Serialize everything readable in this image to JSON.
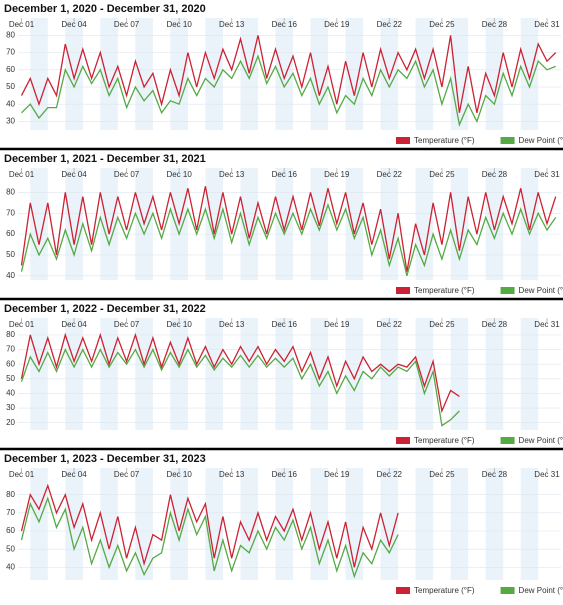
{
  "chart_data": [
    {
      "type": "line",
      "title": "December 1, 2020 - December 31, 2020",
      "x": [
        1,
        1.5,
        2,
        2.5,
        3,
        3.5,
        4,
        4.5,
        5,
        5.5,
        6,
        6.5,
        7,
        7.5,
        8,
        8.5,
        9,
        9.5,
        10,
        10.5,
        11,
        11.5,
        12,
        12.5,
        13,
        13.5,
        14,
        14.5,
        15,
        15.5,
        16,
        16.5,
        17,
        17.5,
        18,
        18.5,
        19,
        19.5,
        20,
        20.5,
        21,
        21.5,
        22,
        22.5,
        23,
        23.5,
        24,
        24.5,
        25,
        25.5,
        26,
        26.5,
        27,
        27.5,
        28,
        28.5,
        29,
        29.5,
        30,
        30.5,
        31,
        31.5
      ],
      "xlim": [
        0.8,
        31.8
      ],
      "xticks": [
        {
          "value": 1,
          "label": "Dec 01"
        },
        {
          "value": 4,
          "label": "Dec 04"
        },
        {
          "value": 7,
          "label": "Dec 07"
        },
        {
          "value": 10,
          "label": "Dec 10"
        },
        {
          "value": 13,
          "label": "Dec 13"
        },
        {
          "value": 16,
          "label": "Dec 16"
        },
        {
          "value": 19,
          "label": "Dec 19"
        },
        {
          "value": 22,
          "label": "Dec 22"
        },
        {
          "value": 25,
          "label": "Dec 25"
        },
        {
          "value": 28,
          "label": "Dec 28"
        },
        {
          "value": 31,
          "label": "Dec 31"
        }
      ],
      "ylim": [
        25,
        82
      ],
      "yticks": [
        30,
        40,
        50,
        60,
        70,
        80
      ],
      "legend": "bottom-right",
      "series": [
        {
          "name": "Temperature (°F)",
          "color": "#cc2233",
          "values": [
            45,
            55,
            40,
            55,
            45,
            75,
            55,
            72,
            55,
            70,
            50,
            62,
            45,
            65,
            50,
            58,
            40,
            60,
            45,
            70,
            50,
            70,
            55,
            72,
            60,
            78,
            58,
            80,
            55,
            72,
            55,
            68,
            50,
            70,
            45,
            62,
            40,
            65,
            45,
            70,
            50,
            72,
            55,
            70,
            60,
            72,
            55,
            72,
            50,
            80,
            35,
            62,
            35,
            58,
            45,
            70,
            50,
            72,
            55,
            75,
            65,
            70
          ]
        },
        {
          "name": "Dew Point (°)",
          "color": "#55aa44",
          "values": [
            35,
            40,
            32,
            38,
            38,
            60,
            50,
            62,
            52,
            60,
            45,
            55,
            38,
            50,
            42,
            48,
            35,
            42,
            40,
            55,
            45,
            55,
            50,
            60,
            55,
            65,
            55,
            68,
            52,
            62,
            50,
            58,
            45,
            55,
            40,
            50,
            35,
            45,
            40,
            55,
            45,
            60,
            50,
            60,
            55,
            65,
            50,
            60,
            40,
            55,
            28,
            40,
            30,
            45,
            40,
            58,
            45,
            62,
            50,
            65,
            60,
            62
          ]
        }
      ]
    },
    {
      "type": "line",
      "title": "December 1, 2021 - December 31, 2021",
      "x": [
        1,
        1.5,
        2,
        2.5,
        3,
        3.5,
        4,
        4.5,
        5,
        5.5,
        6,
        6.5,
        7,
        7.5,
        8,
        8.5,
        9,
        9.5,
        10,
        10.5,
        11,
        11.5,
        12,
        12.5,
        13,
        13.5,
        14,
        14.5,
        15,
        15.5,
        16,
        16.5,
        17,
        17.5,
        18,
        18.5,
        19,
        19.5,
        20,
        20.5,
        21,
        21.5,
        22,
        22.5,
        23,
        23.5,
        24,
        24.5,
        25,
        25.5,
        26,
        26.5,
        27,
        27.5,
        28,
        28.5,
        29,
        29.5,
        30,
        30.5,
        31,
        31.5
      ],
      "xlim": [
        0.8,
        31.8
      ],
      "xticks": [
        {
          "value": 1,
          "label": "Dec 01"
        },
        {
          "value": 4,
          "label": "Dec 04"
        },
        {
          "value": 7,
          "label": "Dec 07"
        },
        {
          "value": 10,
          "label": "Dec 10"
        },
        {
          "value": 13,
          "label": "Dec 13"
        },
        {
          "value": 16,
          "label": "Dec 16"
        },
        {
          "value": 19,
          "label": "Dec 19"
        },
        {
          "value": 22,
          "label": "Dec 22"
        },
        {
          "value": 25,
          "label": "Dec 25"
        },
        {
          "value": 28,
          "label": "Dec 28"
        },
        {
          "value": 31,
          "label": "Dec 31"
        }
      ],
      "ylim": [
        38,
        85
      ],
      "yticks": [
        40,
        50,
        60,
        70,
        80
      ],
      "legend": "bottom-right",
      "series": [
        {
          "name": "Temperature (°F)",
          "color": "#cc2233",
          "values": [
            45,
            75,
            55,
            75,
            50,
            80,
            55,
            78,
            55,
            80,
            60,
            78,
            62,
            80,
            65,
            78,
            62,
            80,
            65,
            82,
            62,
            83,
            60,
            80,
            60,
            78,
            58,
            75,
            60,
            78,
            62,
            78,
            62,
            80,
            64,
            82,
            65,
            80,
            60,
            75,
            55,
            72,
            48,
            70,
            42,
            65,
            50,
            75,
            55,
            80,
            52,
            78,
            60,
            80,
            62,
            78,
            65,
            82,
            62,
            80,
            65,
            78
          ]
        },
        {
          "name": "Dew Point (°)",
          "color": "#55aa44",
          "values": [
            42,
            60,
            50,
            58,
            48,
            62,
            50,
            65,
            52,
            68,
            55,
            68,
            58,
            70,
            60,
            70,
            58,
            72,
            60,
            72,
            60,
            72,
            58,
            72,
            56,
            70,
            55,
            68,
            58,
            70,
            60,
            70,
            60,
            72,
            62,
            74,
            62,
            72,
            58,
            68,
            50,
            62,
            45,
            58,
            40,
            55,
            45,
            60,
            48,
            62,
            48,
            62,
            55,
            68,
            58,
            70,
            60,
            72,
            60,
            70,
            62,
            68
          ]
        }
      ]
    },
    {
      "type": "line",
      "title": "December 1, 2022 - December 31, 2022",
      "x": [
        1,
        1.5,
        2,
        2.5,
        3,
        3.5,
        4,
        4.5,
        5,
        5.5,
        6,
        6.5,
        7,
        7.5,
        8,
        8.5,
        9,
        9.5,
        10,
        10.5,
        11,
        11.5,
        12,
        12.5,
        13,
        13.5,
        14,
        14.5,
        15,
        15.5,
        16,
        16.5,
        17,
        17.5,
        18,
        18.5,
        19,
        19.5,
        20,
        20.5,
        21,
        21.5,
        22,
        22.5,
        23,
        23.5,
        24,
        24.5,
        25,
        25.5,
        26
      ],
      "xlim": [
        0.8,
        31.8
      ],
      "xticks": [
        {
          "value": 1,
          "label": "Dec 01"
        },
        {
          "value": 4,
          "label": "Dec 04"
        },
        {
          "value": 7,
          "label": "Dec 07"
        },
        {
          "value": 10,
          "label": "Dec 10"
        },
        {
          "value": 13,
          "label": "Dec 13"
        },
        {
          "value": 16,
          "label": "Dec 16"
        },
        {
          "value": 19,
          "label": "Dec 19"
        },
        {
          "value": 22,
          "label": "Dec 22"
        },
        {
          "value": 25,
          "label": "Dec 25"
        },
        {
          "value": 28,
          "label": "Dec 28"
        },
        {
          "value": 31,
          "label": "Dec 31"
        }
      ],
      "ylim": [
        15,
        82
      ],
      "yticks": [
        20,
        30,
        40,
        50,
        60,
        70,
        80
      ],
      "legend": "bottom-right",
      "series": [
        {
          "name": "Temperature (°F)",
          "color": "#cc2233",
          "values": [
            50,
            80,
            60,
            78,
            58,
            80,
            62,
            78,
            62,
            80,
            60,
            78,
            62,
            80,
            60,
            78,
            58,
            75,
            60,
            78,
            60,
            72,
            58,
            70,
            60,
            72,
            62,
            72,
            60,
            70,
            62,
            72,
            55,
            68,
            50,
            65,
            45,
            62,
            50,
            65,
            55,
            60,
            55,
            60,
            58,
            65,
            45,
            62,
            28,
            42,
            38
          ]
        },
        {
          "name": "Dew Point (°)",
          "color": "#55aa44",
          "values": [
            48,
            65,
            55,
            68,
            55,
            70,
            58,
            70,
            58,
            70,
            58,
            68,
            60,
            70,
            58,
            70,
            56,
            68,
            58,
            70,
            58,
            66,
            56,
            64,
            58,
            66,
            58,
            66,
            58,
            64,
            58,
            64,
            50,
            60,
            45,
            55,
            40,
            52,
            42,
            55,
            50,
            58,
            52,
            58,
            55,
            62,
            40,
            55,
            18,
            22,
            28
          ]
        }
      ]
    },
    {
      "type": "line",
      "title": "December 1, 2023 - December 31, 2023",
      "x": [
        1,
        1.5,
        2,
        2.5,
        3,
        3.5,
        4,
        4.5,
        5,
        5.5,
        6,
        6.5,
        7,
        7.5,
        8,
        8.5,
        9,
        9.5,
        10,
        10.5,
        11,
        11.5,
        12,
        12.5,
        13,
        13.5,
        14,
        14.5,
        15,
        15.5,
        16,
        16.5,
        17,
        17.5,
        18,
        18.5,
        19,
        19.5,
        20,
        20.5,
        21,
        21.5,
        22,
        22.5
      ],
      "xlim": [
        0.8,
        31.8
      ],
      "xticks": [
        {
          "value": 1,
          "label": "Dec 01"
        },
        {
          "value": 4,
          "label": "Dec 04"
        },
        {
          "value": 7,
          "label": "Dec 07"
        },
        {
          "value": 10,
          "label": "Dec 10"
        },
        {
          "value": 13,
          "label": "Dec 13"
        },
        {
          "value": 16,
          "label": "Dec 16"
        },
        {
          "value": 19,
          "label": "Dec 19"
        },
        {
          "value": 22,
          "label": "Dec 22"
        },
        {
          "value": 25,
          "label": "Dec 25"
        },
        {
          "value": 28,
          "label": "Dec 28"
        },
        {
          "value": 31,
          "label": "Dec 31"
        }
      ],
      "ylim": [
        33,
        87
      ],
      "yticks": [
        40,
        50,
        60,
        70,
        80
      ],
      "legend": "bottom-right",
      "series": [
        {
          "name": "Temperature (°F)",
          "color": "#cc2233",
          "values": [
            60,
            80,
            72,
            85,
            70,
            80,
            62,
            75,
            55,
            70,
            50,
            68,
            45,
            62,
            42,
            58,
            55,
            80,
            60,
            78,
            65,
            75,
            45,
            68,
            45,
            65,
            55,
            70,
            55,
            68,
            60,
            72,
            55,
            70,
            50,
            65,
            45,
            65,
            40,
            62,
            50,
            70,
            52,
            70
          ]
        },
        {
          "name": "Dew Point (°)",
          "color": "#55aa44",
          "values": [
            55,
            75,
            65,
            78,
            62,
            72,
            50,
            62,
            42,
            55,
            40,
            52,
            38,
            48,
            36,
            45,
            48,
            70,
            55,
            72,
            58,
            68,
            38,
            55,
            38,
            52,
            48,
            60,
            50,
            62,
            55,
            66,
            50,
            62,
            42,
            55,
            38,
            52,
            35,
            48,
            42,
            55,
            48,
            58
          ]
        }
      ]
    }
  ]
}
